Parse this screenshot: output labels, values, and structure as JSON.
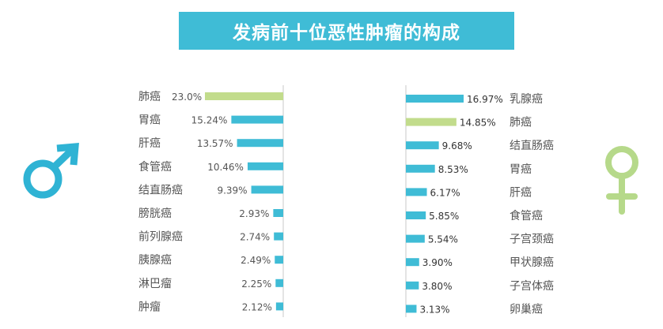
{
  "title": "发病前十位恶性肿瘤的构成",
  "colors": {
    "accent": "#3fbcd6",
    "highlight": "#c2dc8c",
    "axis": "#c8c8c8",
    "male_symbol": "#2fb3d4",
    "female_symbol": "#b6d98a"
  },
  "symbols": {
    "left": "♂",
    "right": "♀"
  },
  "chart_data": [
    {
      "type": "bar",
      "orientation": "horizontal",
      "direction": "right-to-left",
      "categories": [
        "肺癌",
        "胃癌",
        "肝癌",
        "食管癌",
        "结直肠癌",
        "膀胱癌",
        "前列腺癌",
        "胰腺癌",
        "淋巴瘤",
        "肿瘤"
      ],
      "values": [
        23.0,
        15.24,
        13.57,
        10.46,
        9.39,
        2.93,
        2.74,
        2.49,
        2.25,
        2.12
      ],
      "value_labels": [
        "23.0%",
        "15.24%",
        "13.57%",
        "10.46%",
        "9.39%",
        "2.93%",
        "2.74%",
        "2.49%",
        "2.25%",
        "2.12%"
      ],
      "highlight_index": 0,
      "unit": "%"
    },
    {
      "type": "bar",
      "orientation": "horizontal",
      "direction": "left-to-right",
      "categories": [
        "乳腺癌",
        "肺癌",
        "结直肠癌",
        "胃癌",
        "肝癌",
        "食管癌",
        "子宫颈癌",
        "甲状腺癌",
        "子宫体癌",
        "卵巢癌"
      ],
      "values": [
        16.97,
        14.85,
        9.68,
        8.53,
        6.17,
        5.85,
        5.54,
        3.9,
        3.8,
        3.13
      ],
      "value_labels": [
        "16.97%",
        "14.85%",
        "9.68%",
        "8.53%",
        "6.17%",
        "5.85%",
        "5.54%",
        "3.90%",
        "3.80%",
        "3.13%"
      ],
      "highlight_index": 1,
      "unit": "%"
    }
  ]
}
